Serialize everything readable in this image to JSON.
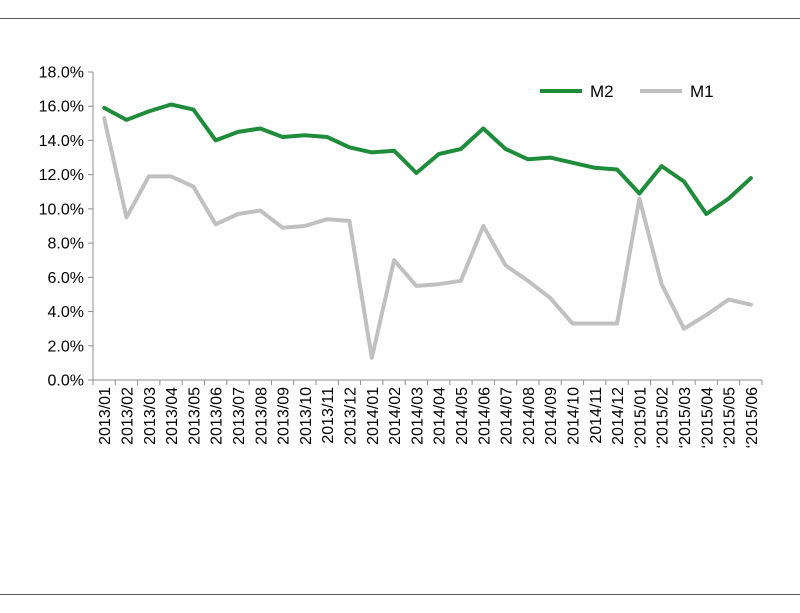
{
  "chart_data": {
    "type": "line",
    "title": "",
    "xlabel": "",
    "ylabel": "",
    "x": [
      "2013/01",
      "2013/02",
      "2013/03",
      "2013/04",
      "2013/05",
      "2013/06",
      "2013/07",
      "2013/08",
      "2013/09",
      "2013/10",
      "2013/11",
      "2013/12",
      "2014/01",
      "2014/02",
      "2014/03",
      "2014/04",
      "2014/05",
      "2014/06",
      "2014/07",
      "2014/08",
      "2014/09",
      "2014/10",
      "2014/11",
      "2014/12",
      "2015/01",
      "2015/02",
      "2015/03",
      "2015/04",
      "2015/05",
      "2015/06"
    ],
    "x_tick_labels": [
      "2013/01",
      "2013/02",
      "2013/03",
      "2013/04",
      "2013/05",
      "2013/06",
      "2013/07",
      "2013/08",
      "2013/09",
      "2013/10",
      "2013/11",
      "2013/12",
      "2014/01",
      "2014/02",
      "2014/03",
      "2014/04",
      "2014/05",
      "2014/06",
      "2014/07",
      "2014/08",
      "2014/09",
      "2014/10",
      "2014/11",
      "2014/12",
      "‘2015/01",
      "‘2015/02",
      "‘2015/03",
      "‘2015/04",
      "‘2015/05",
      "‘2015/06"
    ],
    "ylim": [
      0,
      18
    ],
    "y_ticks": [
      0,
      2,
      4,
      6,
      8,
      10,
      12,
      14,
      16,
      18
    ],
    "y_tick_labels": [
      "0.0%",
      "2.0%",
      "4.0%",
      "6.0%",
      "8.0%",
      "10.0%",
      "12.0%",
      "14.0%",
      "16.0%",
      "18.0%"
    ],
    "grid": false,
    "legend_position": "top-right",
    "series": [
      {
        "name": "M2",
        "color": "#1e8c3a",
        "values": [
          15.9,
          15.2,
          15.7,
          16.1,
          15.8,
          14.0,
          14.5,
          14.7,
          14.2,
          14.3,
          14.2,
          13.6,
          13.3,
          13.4,
          12.1,
          13.2,
          13.5,
          14.7,
          13.5,
          12.9,
          13.0,
          12.7,
          12.4,
          12.3,
          10.9,
          12.5,
          11.6,
          9.7,
          10.6,
          11.8
        ]
      },
      {
        "name": "M1",
        "color": "#c0c0c0",
        "values": [
          15.3,
          9.5,
          11.9,
          11.9,
          11.3,
          9.1,
          9.7,
          9.9,
          8.9,
          9.0,
          9.4,
          9.3,
          1.3,
          7.0,
          5.5,
          5.6,
          5.8,
          9.0,
          6.7,
          5.8,
          4.8,
          3.3,
          3.3,
          3.3,
          10.6,
          5.6,
          3.0,
          3.8,
          4.7,
          4.4
        ]
      }
    ]
  }
}
